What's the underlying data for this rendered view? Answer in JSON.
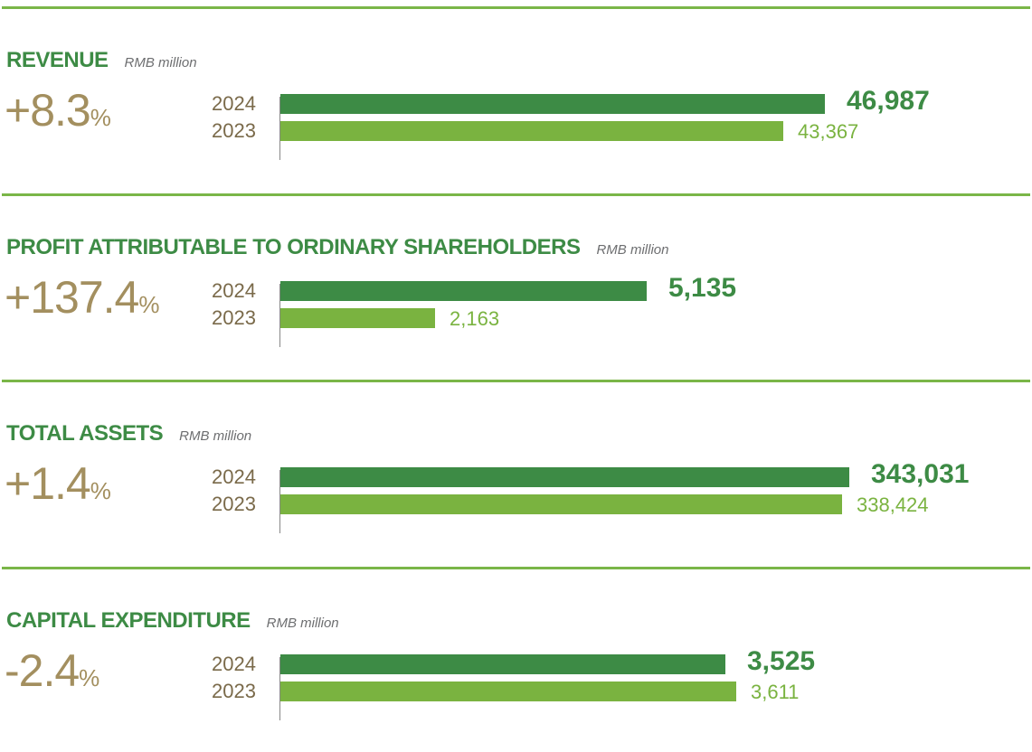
{
  "colors": {
    "rule": "#7ab648",
    "title": "#3d8b45",
    "bar_2024": "#3d8b45",
    "bar_2023": "#7ab340",
    "value_2024": "#3d8b45",
    "value_2023": "#7ab340",
    "change": "#a38f5f"
  },
  "chart_data": [
    {
      "type": "bar",
      "title": "REVENUE",
      "unit": "RMB million",
      "change": "+8.3",
      "change_unit": "%",
      "categories": [
        "2024",
        "2023"
      ],
      "values": [
        46987,
        43367
      ],
      "labels": [
        "46,987",
        "43,367"
      ]
    },
    {
      "type": "bar",
      "title": "PROFIT ATTRIBUTABLE TO ORDINARY SHAREHOLDERS",
      "unit": "RMB million",
      "change": "+137.4",
      "change_unit": "%",
      "categories": [
        "2024",
        "2023"
      ],
      "values": [
        5135,
        2163
      ],
      "labels": [
        "5,135",
        "2,163"
      ]
    },
    {
      "type": "bar",
      "title": "TOTAL ASSETS",
      "unit": "RMB million",
      "change": "+1.4",
      "change_unit": "%",
      "categories": [
        "2024",
        "2023"
      ],
      "values": [
        343031,
        338424
      ],
      "labels": [
        "343,031",
        "338,424"
      ]
    },
    {
      "type": "bar",
      "title": "CAPITAL EXPENDITURE",
      "unit": "RMB million",
      "change": "-2.4",
      "change_unit": "%",
      "categories": [
        "2024",
        "2023"
      ],
      "values": [
        3525,
        3611
      ],
      "labels": [
        "3,525",
        "3,611"
      ]
    }
  ]
}
